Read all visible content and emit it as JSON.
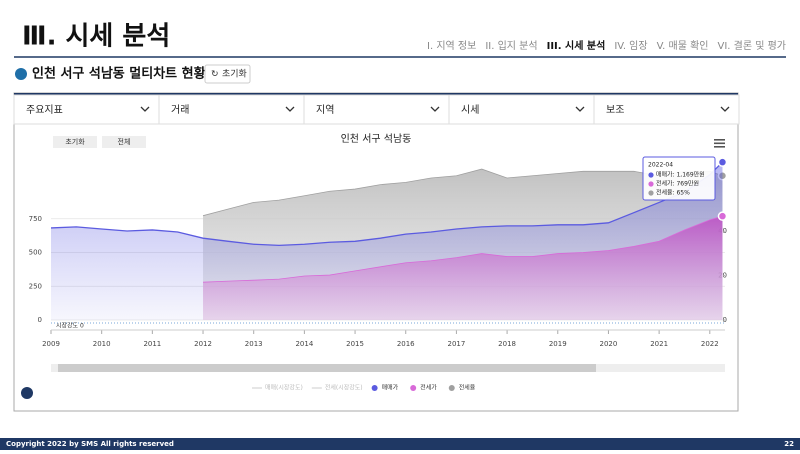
{
  "header": {
    "title": "Ⅲ. 시세 분석",
    "nav": [
      "I. 지역 정보",
      "II. 입지 분석",
      "III. 시세 분석",
      "IV. 임장",
      "V. 매물 확인",
      "VI. 결론 및 평가"
    ],
    "subtitle": "인천 서구 석남동 멀티차트 현황",
    "reset": "초기화"
  },
  "toolbar": [
    "주요지표",
    "거래",
    "지역",
    "시세",
    "보조"
  ],
  "chart_data": {
    "type": "line",
    "title": "인천 서구 석남동",
    "buttons": [
      "초기화",
      "전체"
    ],
    "x": [
      2009,
      2009.5,
      2010,
      2010.5,
      2011,
      2011.5,
      2012,
      2012.5,
      2013,
      2013.5,
      2014,
      2014.5,
      2015,
      2015.5,
      2016,
      2016.5,
      2017,
      2017.5,
      2018,
      2018.5,
      2019,
      2019.5,
      2020,
      2020.5,
      2021,
      2021.5,
      2022,
      2022.25
    ],
    "xlim": [
      2009,
      2022.3
    ],
    "xticks": [
      2009,
      2010,
      2011,
      2012,
      2013,
      2014,
      2015,
      2016,
      2017,
      2018,
      2019,
      2020,
      2021,
      2022
    ],
    "ylim": [
      0,
      1200
    ],
    "yticks": [
      0,
      250,
      500,
      750
    ],
    "y2lim": [
      0,
      73
    ],
    "y2ticks": [
      0,
      20,
      40
    ],
    "grid": true,
    "annotation": "시장강도 0",
    "series": [
      {
        "name": "전세율",
        "color": "#a0a0a0",
        "axis": "y2",
        "values": [
          null,
          null,
          null,
          null,
          null,
          null,
          47,
          50,
          53,
          54,
          56,
          58,
          59,
          61,
          62,
          64,
          65,
          68,
          64,
          65,
          66,
          67,
          67,
          67,
          65,
          67,
          67,
          65
        ]
      },
      {
        "name": "매매가",
        "color": "#5b5be0",
        "values": [
          682,
          690,
          674,
          659,
          667,
          652,
          606,
          583,
          561,
          553,
          561,
          576,
          583,
          606,
          636,
          652,
          674,
          690,
          697,
          697,
          705,
          705,
          720,
          795,
          871,
          947,
          1076,
          1169
        ]
      },
      {
        "name": "전세가",
        "color": "#d86ad8",
        "values": [
          null,
          null,
          null,
          null,
          null,
          null,
          280,
          288,
          295,
          303,
          326,
          333,
          364,
          394,
          424,
          439,
          462,
          492,
          470,
          470,
          492,
          500,
          515,
          545,
          583,
          667,
          742,
          769
        ]
      }
    ],
    "inactive_legend": [
      "매매(시장강도)",
      "전세(시장강도)"
    ],
    "tooltip": {
      "date": "2022-04",
      "items": [
        "매매가: 1,169만원",
        "전세가: 769만원",
        "전세율: 65%"
      ]
    }
  },
  "footer": {
    "copyright": "Copyright 2022 by SMS All rights reserved",
    "page": "22"
  }
}
